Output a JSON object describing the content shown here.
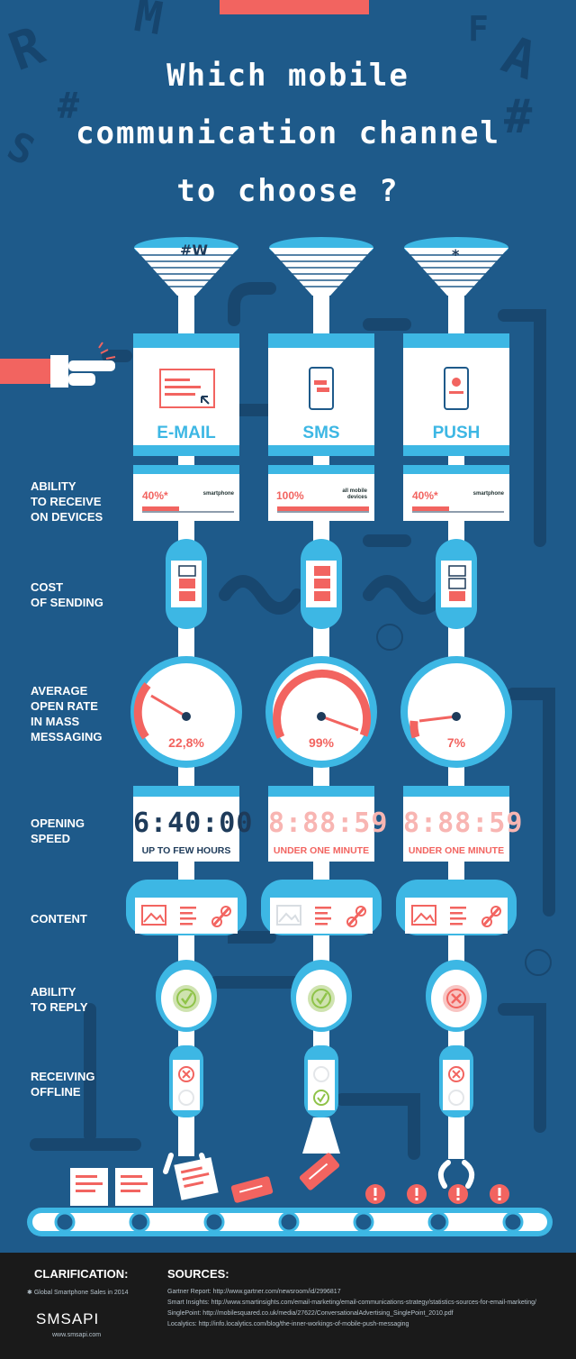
{
  "title": {
    "line1": "Which mobile",
    "line2": "communication channel",
    "line3": "to choose ?"
  },
  "row_labels": {
    "ability_receive": [
      "ABILITY",
      "TO RECEIVE",
      "ON DEVICES"
    ],
    "cost": [
      "COST",
      "OF SENDING"
    ],
    "open_rate": [
      "AVERAGE",
      "OPEN RATE",
      "IN MASS",
      "MESSAGING"
    ],
    "speed": [
      "OPENING",
      "SPEED"
    ],
    "content": [
      "CONTENT"
    ],
    "reply": [
      "ABILITY",
      "TO REPLY"
    ],
    "offline": [
      "RECEIVING",
      "OFFLINE"
    ]
  },
  "channels": [
    {
      "name": "E-MAIL",
      "receive_pct": "40%*",
      "receive_value": 0.4,
      "receive_device": "smartphone",
      "cost_filled": 2,
      "open_rate": "22,8%",
      "open_rate_value": 22.8,
      "speed_display": "6:40:00",
      "speed_label": "UP TO FEW HOURS",
      "content_enabled": [
        true,
        true,
        true
      ],
      "reply": "yes",
      "offline": "no"
    },
    {
      "name": "SMS",
      "receive_pct": "100%",
      "receive_value": 1.0,
      "receive_device": "all mobile devices",
      "cost_filled": 3,
      "open_rate": "99%",
      "open_rate_value": 99,
      "speed_display": "8:88:59",
      "speed_label": "UNDER ONE MINUTE",
      "content_enabled": [
        false,
        true,
        true
      ],
      "reply": "yes",
      "offline": "yes"
    },
    {
      "name": "PUSH",
      "receive_pct": "40%*",
      "receive_value": 0.4,
      "receive_device": "smartphone",
      "cost_filled": 1,
      "open_rate": "7%",
      "open_rate_value": 7,
      "speed_display": "8:88:59",
      "speed_label": "UNDER ONE MINUTE",
      "content_enabled": [
        true,
        true,
        true
      ],
      "reply": "no",
      "offline": "no"
    }
  ],
  "footer": {
    "clarification_heading": "CLARIFICATION:",
    "clarification_note": "Global Smartphone Sales in 2014",
    "sources_heading": "SOURCES:",
    "sources": [
      "Gartner Report: http://www.gartner.com/newsroom/id/2996817",
      "Smart Insights: http://www.smartinsights.com/email-marketing/email-communications-strategy/statistics-sources-for-email-marketing/",
      "SinglePoint: http://mobilesquared.co.uk/media/27622/ConversationalAdvertising_SinglePoint_2010.pdf",
      "Localytics: http://info.localytics.com/blog/the-inner-workings-of-mobile-push-messaging"
    ],
    "logo": "SMSAPI",
    "logo_url": "www.smsapi.com"
  },
  "colors": {
    "background": "#1e5a8a",
    "accent_red": "#f26460",
    "accent_blue": "#3db7e4",
    "green": "#8fc349",
    "footer": "#1a1a1a"
  }
}
